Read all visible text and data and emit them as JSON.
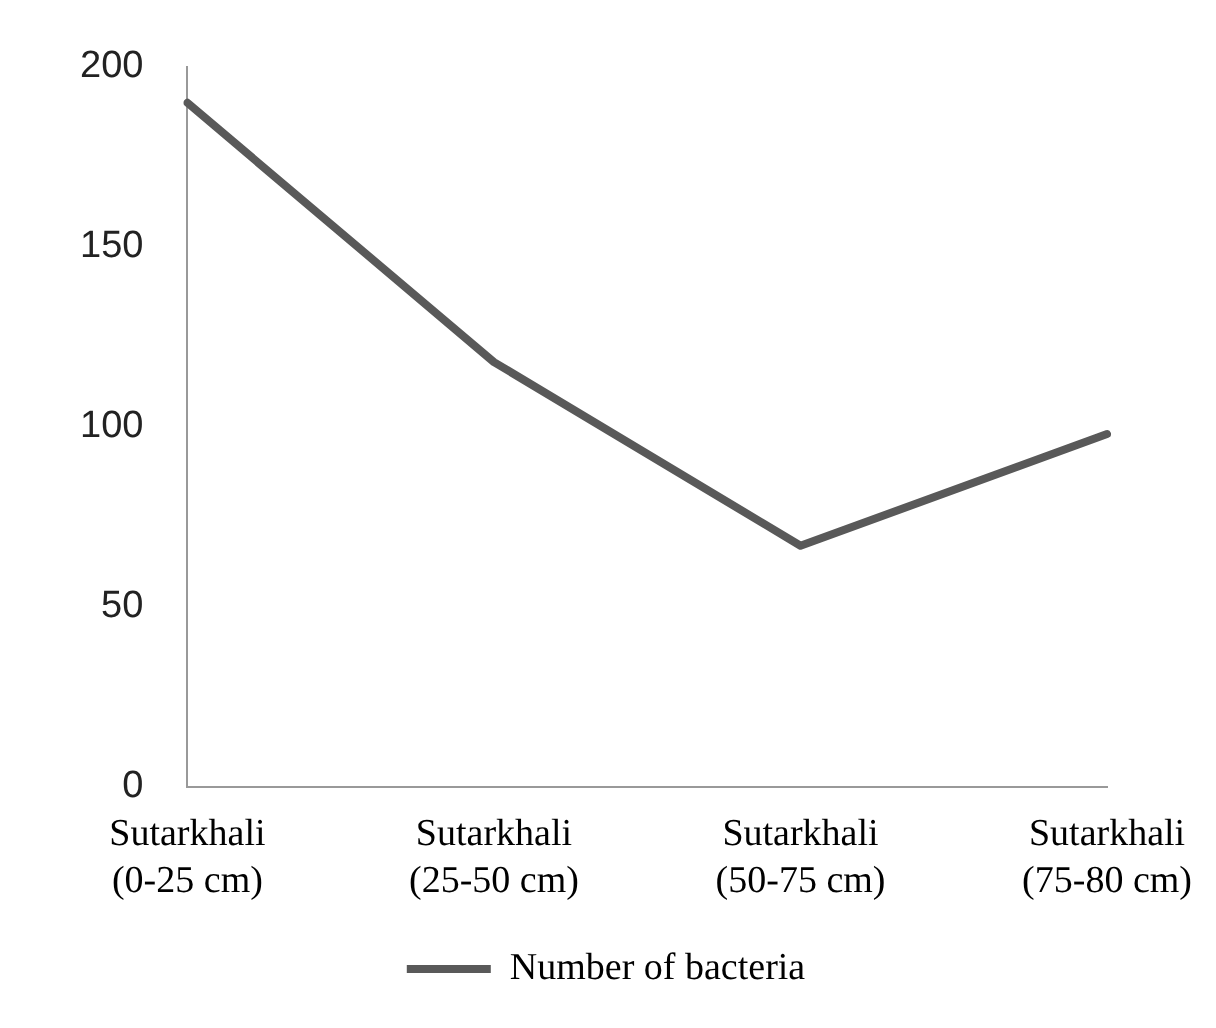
{
  "chart_data": {
    "type": "line",
    "categories": [
      "Sutarkhali (0-25 cm)",
      "Sutarkhali (25-50 cm)",
      "Sutarkhali (50-75 cm)",
      "Sutarkhali (75-80 cm)"
    ],
    "series": [
      {
        "name": "Number of bacteria",
        "color": "#595959",
        "values": [
          190,
          118,
          67,
          98
        ]
      }
    ],
    "ylim": [
      0,
      200
    ],
    "yticks": [
      0,
      50,
      100,
      150,
      200
    ],
    "grid": false,
    "legend": "bottom",
    "marker": "none",
    "line_style": "solid"
  }
}
